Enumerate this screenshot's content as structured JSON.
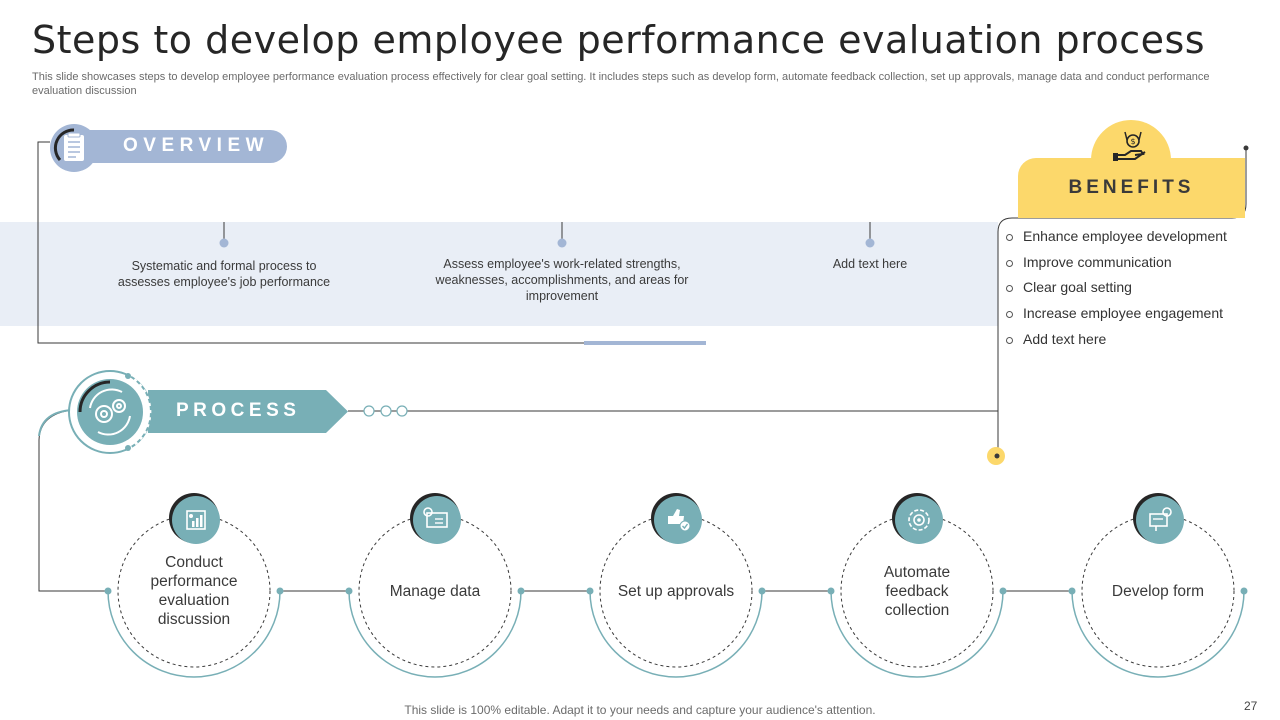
{
  "title": "Steps to develop employee performance evaluation process",
  "subtitle": "This slide showcases steps to develop employee performance evaluation process effectively for clear goal setting. It includes steps such as develop form, automate feedback collection, set up approvals, manage data and conduct performance evaluation discussion",
  "overview": {
    "label": "OVERVIEW",
    "icon": "document-icon",
    "items": [
      "Systematic and formal process to assesses employee's job performance",
      "Assess employee's work-related strengths, weaknesses, accomplishments, and areas for improvement",
      "Add text here"
    ]
  },
  "benefits": {
    "label": "BENEFITS",
    "icon": "hand-money-icon",
    "items": [
      "Enhance employee development",
      "Improve communication",
      "Clear goal setting",
      "Increase employee engagement",
      "Add text here"
    ]
  },
  "process": {
    "label": "PROCESS",
    "icon": "gears-icon",
    "steps": [
      {
        "label": "Conduct performance evaluation discussion",
        "icon": "report-chart-icon"
      },
      {
        "label": "Manage data",
        "icon": "data-settings-icon"
      },
      {
        "label": "Set up approvals",
        "icon": "thumbs-up-check-icon"
      },
      {
        "label": "Automate feedback collection",
        "icon": "gear-cycle-icon"
      },
      {
        "label": "Develop form",
        "icon": "form-presentation-icon"
      }
    ]
  },
  "footer": "This slide is 100% editable. Adapt it to your needs and capture your audience's attention.",
  "page_number": "27",
  "colors": {
    "overview_blue": "#a3b6d5",
    "band": "#e9eef6",
    "benefits_yellow": "#fcd86b",
    "process_teal": "#78afb6",
    "line": "#3a3a3a"
  }
}
